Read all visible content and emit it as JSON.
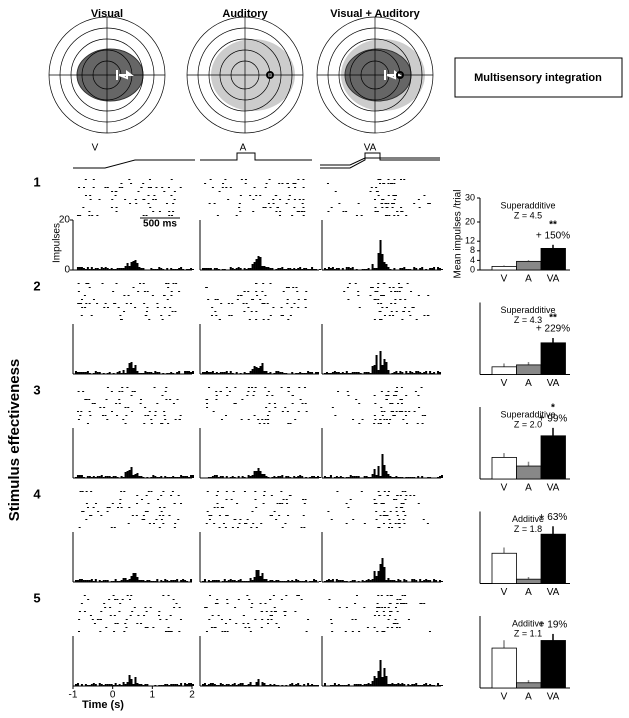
{
  "panel_titles": [
    "Visual",
    "Auditory",
    "Visual + Auditory"
  ],
  "legend_box": "Multisensory integration",
  "stimulus_labels": [
    "V",
    "A",
    "VA"
  ],
  "y_label": "Stimulus effectiveness",
  "rows": [
    "1",
    "2",
    "3",
    "4",
    "5"
  ],
  "psth": {
    "y_label": "Impulses",
    "yticks": [
      0,
      20
    ],
    "scale_bar": "500 ms",
    "xticks": [
      -1,
      0,
      1,
      2
    ],
    "x_label": "Time (s)"
  },
  "chart_data": [
    {
      "type": "bar",
      "title": "Superadditive",
      "subtitle": "Z = 4.5",
      "categories": [
        "V",
        "A",
        "VA"
      ],
      "values": [
        1.5,
        3.6,
        9
      ],
      "errors": [
        0.4,
        0.5,
        1.5
      ],
      "colors": [
        "#ffffff",
        "#888888",
        "#000000"
      ],
      "significance": "**",
      "annotation": "+ 150%",
      "ylim": [
        0,
        30
      ],
      "yticks": [
        0,
        4,
        8,
        12,
        20,
        30
      ],
      "ylabel": "Mean impulses /trial"
    },
    {
      "type": "bar",
      "title": "Superadditive",
      "subtitle": "Z = 4.3",
      "categories": [
        "V",
        "A",
        "VA"
      ],
      "values": [
        1.6,
        2.0,
        6.6
      ],
      "errors": [
        0.7,
        0.6,
        1.0
      ],
      "colors": [
        "#ffffff",
        "#888888",
        "#000000"
      ],
      "significance": "**",
      "annotation": "+ 229%",
      "ylim": [
        0,
        15
      ]
    },
    {
      "type": "bar",
      "title": "Superadditive",
      "subtitle": "Z = 2.0",
      "categories": [
        "V",
        "A",
        "VA"
      ],
      "values": [
        3,
        1.8,
        6
      ],
      "errors": [
        0.6,
        0.6,
        1.1
      ],
      "colors": [
        "#ffffff",
        "#888888",
        "#000000"
      ],
      "significance": "*",
      "annotation": "+ 99%",
      "ylim": [
        0,
        10
      ]
    },
    {
      "type": "bar",
      "title": "Additive",
      "subtitle": "Z = 1.8",
      "categories": [
        "V",
        "A",
        "VA"
      ],
      "values": [
        4.2,
        0.6,
        6.85
      ],
      "errors": [
        0.8,
        0.3,
        1.1
      ],
      "colors": [
        "#ffffff",
        "#888888",
        "#000000"
      ],
      "annotation": "+ 63%",
      "ylim": [
        0,
        10
      ]
    },
    {
      "type": "bar",
      "title": "Additive",
      "subtitle": "Z = 1.1",
      "categories": [
        "V",
        "A",
        "VA"
      ],
      "values": [
        6.1,
        0.8,
        7.26
      ],
      "errors": [
        1.2,
        0.4,
        1.0
      ],
      "colors": [
        "#ffffff",
        "#888888",
        "#000000"
      ],
      "annotation": "+ 19%",
      "ylim": [
        0,
        11
      ]
    }
  ]
}
